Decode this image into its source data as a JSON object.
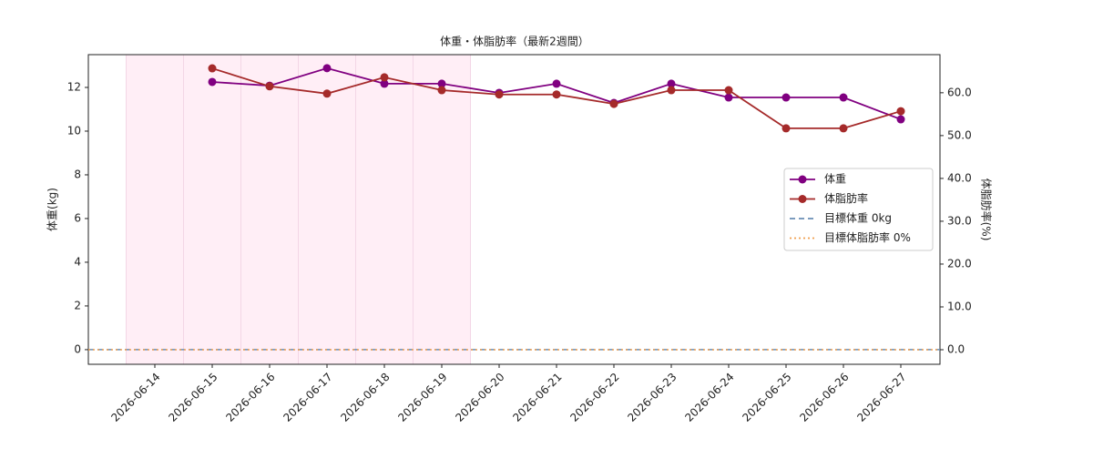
{
  "chart_data": {
    "type": "line",
    "title": "体重・体脂肪率（最新2週間）",
    "ylabel": "体重(kg)",
    "y2label": "体脂肪率(%)",
    "categories": [
      "2026-06-14",
      "2026-06-15",
      "2026-06-16",
      "2026-06-17",
      "2026-06-18",
      "2026-06-19",
      "2026-06-20",
      "2026-06-21",
      "2026-06-22",
      "2026-06-23",
      "2026-06-24",
      "2026-06-25",
      "2026-06-26",
      "2026-06-27"
    ],
    "series": [
      {
        "name": "体重",
        "color": "#800080",
        "axis": "y",
        "values": [
          null,
          12.25,
          12.08,
          12.88,
          12.17,
          12.17,
          11.75,
          12.17,
          11.29,
          12.17,
          11.54,
          11.54,
          11.54,
          10.54
        ]
      },
      {
        "name": "体脂肪率",
        "color": "#a52a2a",
        "axis": "y2",
        "values": [
          null,
          65.7,
          61.5,
          59.8,
          63.6,
          60.6,
          59.6,
          59.6,
          57.4,
          60.6,
          60.6,
          51.7,
          51.7,
          55.7
        ]
      }
    ],
    "targets": [
      {
        "name": "目標体重 0kg",
        "value": 0,
        "axis": "y",
        "color": "#6a8fb5",
        "dash": "6,4"
      },
      {
        "name": "目標体脂肪率 0%",
        "value": 0,
        "axis": "y2",
        "color": "#f0a050",
        "dash": "2,3"
      }
    ],
    "highlighted_categories": [
      0,
      1,
      2,
      3,
      4,
      5
    ],
    "highlight_color": "#ffeef6",
    "ylim": [
      -0.67,
      13.5
    ],
    "yticks": [
      0,
      2,
      4,
      6,
      8,
      10,
      12
    ],
    "y2lim": [
      -3.4,
      68.9
    ],
    "y2ticks": [
      {
        "value": 0,
        "label": "0.0"
      },
      {
        "value": 10,
        "label": "10.0"
      },
      {
        "value": 20,
        "label": "20.0"
      },
      {
        "value": 30,
        "label": "30.0"
      },
      {
        "value": 40,
        "label": "40.0"
      },
      {
        "value": 50,
        "label": "50.0"
      },
      {
        "value": 60,
        "label": "60.0"
      }
    ],
    "legend": "center right"
  }
}
